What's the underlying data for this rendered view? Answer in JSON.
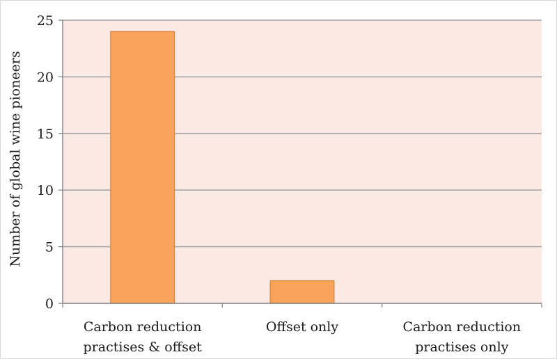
{
  "chart_data": {
    "type": "bar",
    "categories": [
      [
        "Carbon reduction",
        "practises & offset"
      ],
      [
        "Offset only"
      ],
      [
        "Carbon reduction",
        "practises only"
      ]
    ],
    "values": [
      24,
      2,
      0
    ],
    "title": "",
    "xlabel": "",
    "ylabel": "Number of global wine pioneers",
    "ylim": [
      0,
      25
    ],
    "yticks": [
      0,
      5,
      10,
      15,
      20,
      25
    ],
    "grid": true,
    "legend": "none"
  },
  "colors": {
    "plot_background": "#fbe9e4",
    "bar_fill": "#f7a35a",
    "bar_stroke": "#d9823a",
    "gridline": "#a6a6a6",
    "axis": "#7f7f7f"
  }
}
